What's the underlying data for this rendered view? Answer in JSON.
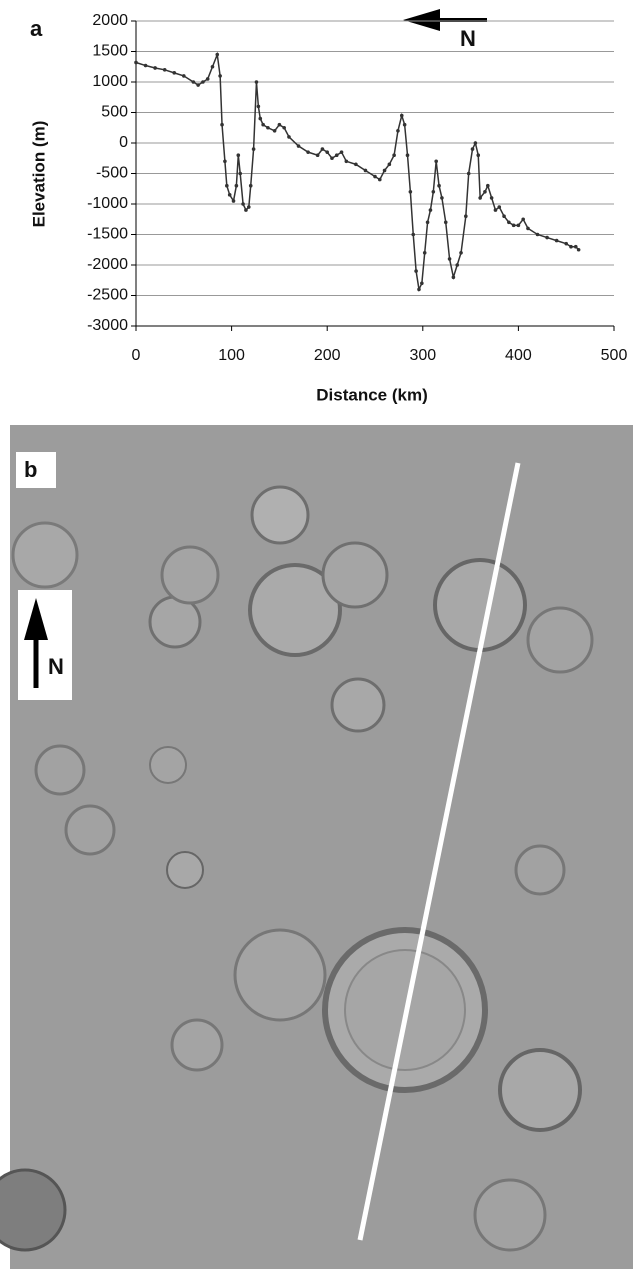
{
  "chart_data": {
    "type": "line",
    "xlabel": "Distance (km)",
    "ylabel": "Elevation (m)",
    "xlim": [
      0,
      500
    ],
    "xticks": [
      0,
      100,
      200,
      300,
      400,
      500
    ],
    "ylim": [
      -3000,
      2000
    ],
    "yticks": [
      -3000,
      -2500,
      -2000,
      -1500,
      -1000,
      -500,
      0,
      500,
      1000,
      1500,
      2000
    ],
    "grid": true,
    "series": [
      {
        "color": "#333333",
        "x": [
          0,
          10,
          20,
          30,
          40,
          50,
          60,
          65,
          70,
          75,
          80,
          85,
          88,
          90,
          93,
          95,
          98,
          102,
          105,
          107,
          109,
          112,
          115,
          118,
          120,
          123,
          126,
          128,
          130,
          133,
          138,
          145,
          150,
          155,
          160,
          170,
          180,
          190,
          195,
          200,
          205,
          210,
          215,
          220,
          230,
          240,
          250,
          255,
          260,
          265,
          270,
          274,
          278,
          281,
          284,
          287,
          290,
          293,
          296,
          299,
          302,
          305,
          308,
          311,
          314,
          317,
          320,
          324,
          328,
          332,
          336,
          340,
          345,
          348,
          352,
          355,
          358,
          360,
          365,
          368,
          372,
          376,
          380,
          385,
          390,
          395,
          400,
          405,
          410,
          420,
          430,
          440,
          450,
          455,
          460,
          463
        ],
        "values": [
          1320,
          1270,
          1230,
          1200,
          1150,
          1100,
          1000,
          950,
          1000,
          1050,
          1250,
          1450,
          1100,
          300,
          -300,
          -700,
          -850,
          -950,
          -700,
          -200,
          -500,
          -1000,
          -1100,
          -1050,
          -700,
          -100,
          1000,
          600,
          400,
          300,
          250,
          200,
          300,
          250,
          100,
          -50,
          -150,
          -200,
          -100,
          -150,
          -250,
          -200,
          -150,
          -300,
          -350,
          -450,
          -550,
          -600,
          -450,
          -350,
          -200,
          200,
          450,
          300,
          -200,
          -800,
          -1500,
          -2100,
          -2400,
          -2300,
          -1800,
          -1300,
          -1100,
          -800,
          -300,
          -700,
          -900,
          -1300,
          -1900,
          -2200,
          -2000,
          -1800,
          -1200,
          -500,
          -100,
          0,
          -200,
          -900,
          -800,
          -700,
          -900,
          -1100,
          -1050,
          -1200,
          -1300,
          -1350,
          -1350,
          -1250,
          -1400,
          -1500,
          -1550,
          -1600,
          -1650,
          -1700,
          -1700,
          -1750
        ]
      }
    ]
  },
  "panel_labels": [
    "a",
    "b"
  ],
  "north_labels": [
    "N",
    "N"
  ]
}
